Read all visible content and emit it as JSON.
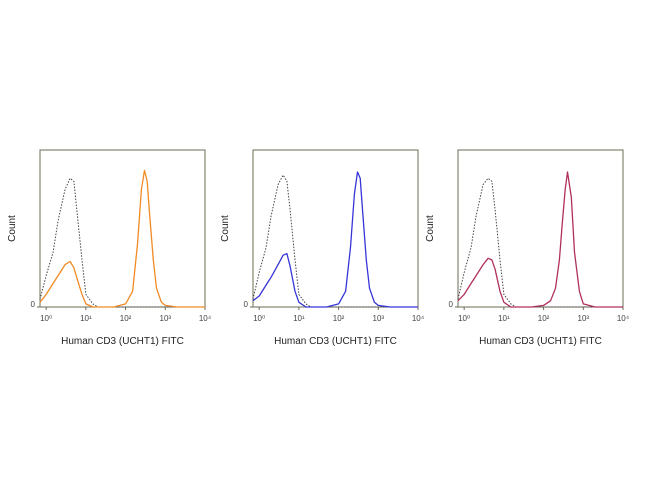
{
  "chart_data": [
    {
      "type": "line",
      "xlabel": "Human CD3 (UCHT1) FITC",
      "ylabel": "Count",
      "xscale": "log",
      "xlim": [
        0.7,
        10000
      ],
      "xticks": [
        {
          "value": 1,
          "label": "10⁰"
        },
        {
          "value": 10,
          "label": "10¹"
        },
        {
          "value": 100,
          "label": "10²"
        },
        {
          "value": 1000,
          "label": "10³"
        },
        {
          "value": 10000,
          "label": "10⁴"
        }
      ],
      "ylim": [
        0,
        100
      ],
      "yticks": [
        0
      ],
      "x": [
        0.7,
        1,
        1.5,
        2,
        3,
        4,
        5,
        6,
        8,
        10,
        15,
        20,
        50,
        100,
        150,
        200,
        250,
        300,
        350,
        400,
        500,
        600,
        800,
        1000,
        2000,
        10000
      ],
      "series": [
        {
          "color": "#444444",
          "dash": "dotted",
          "values": [
            5,
            20,
            35,
            55,
            75,
            82,
            80,
            60,
            30,
            8,
            2,
            0,
            0,
            0,
            0,
            0,
            0,
            0,
            0,
            0,
            0,
            0,
            0,
            0,
            0,
            0
          ]
        },
        {
          "color": "#f08a24",
          "dash": "solid",
          "values": [
            3,
            8,
            15,
            20,
            27,
            29,
            25,
            18,
            8,
            2,
            0,
            0,
            0,
            2,
            10,
            40,
            75,
            87,
            80,
            60,
            30,
            12,
            3,
            1,
            0,
            0
          ]
        }
      ]
    },
    {
      "type": "line",
      "xlabel": "Human CD3 (UCHT1) FITC",
      "ylabel": "Count",
      "xscale": "log",
      "xlim": [
        0.7,
        10000
      ],
      "xticks": [
        {
          "value": 1,
          "label": "10⁰"
        },
        {
          "value": 10,
          "label": "10¹"
        },
        {
          "value": 100,
          "label": "10²"
        },
        {
          "value": 1000,
          "label": "10³"
        },
        {
          "value": 10000,
          "label": "10⁴"
        }
      ],
      "ylim": [
        0,
        100
      ],
      "yticks": [
        0
      ],
      "x": [
        0.7,
        1,
        1.5,
        2,
        3,
        4,
        5,
        6,
        8,
        10,
        15,
        20,
        50,
        100,
        150,
        200,
        250,
        300,
        350,
        400,
        500,
        600,
        800,
        1000,
        2000,
        10000
      ],
      "series": [
        {
          "color": "#444444",
          "dash": "dotted",
          "values": [
            5,
            22,
            38,
            58,
            78,
            84,
            80,
            62,
            30,
            8,
            2,
            0,
            0,
            0,
            0,
            0,
            0,
            0,
            0,
            0,
            0,
            0,
            0,
            0,
            0,
            0
          ]
        },
        {
          "color": "#3535d8",
          "dash": "solid",
          "values": [
            4,
            7,
            14,
            19,
            27,
            33,
            34,
            26,
            10,
            3,
            0,
            0,
            0,
            2,
            10,
            38,
            72,
            86,
            82,
            62,
            30,
            12,
            3,
            1,
            0,
            0
          ]
        }
      ]
    },
    {
      "type": "line",
      "xlabel": "Human CD3 (UCHT1) FITC",
      "ylabel": "Count",
      "xscale": "log",
      "xlim": [
        0.7,
        10000
      ],
      "xticks": [
        {
          "value": 1,
          "label": "10⁰"
        },
        {
          "value": 10,
          "label": "10¹"
        },
        {
          "value": 100,
          "label": "10²"
        },
        {
          "value": 1000,
          "label": "10³"
        },
        {
          "value": 10000,
          "label": "10⁴"
        }
      ],
      "ylim": [
        0,
        100
      ],
      "yticks": [
        0
      ],
      "x": [
        0.7,
        1,
        1.5,
        2,
        3,
        4,
        5,
        6,
        8,
        10,
        15,
        20,
        50,
        100,
        150,
        200,
        250,
        300,
        350,
        400,
        500,
        600,
        800,
        1000,
        2000,
        10000
      ],
      "series": [
        {
          "color": "#444444",
          "dash": "dotted",
          "values": [
            5,
            22,
            38,
            58,
            78,
            82,
            80,
            62,
            30,
            8,
            2,
            0,
            0,
            0,
            0,
            0,
            0,
            0,
            0,
            0,
            0,
            0,
            0,
            0,
            0,
            0
          ]
        },
        {
          "color": "#b0305a",
          "dash": "solid",
          "values": [
            4,
            8,
            15,
            20,
            27,
            31,
            30,
            24,
            10,
            3,
            0,
            0,
            0,
            1,
            4,
            12,
            30,
            55,
            75,
            86,
            70,
            35,
            10,
            2,
            0,
            0
          ]
        }
      ]
    }
  ]
}
